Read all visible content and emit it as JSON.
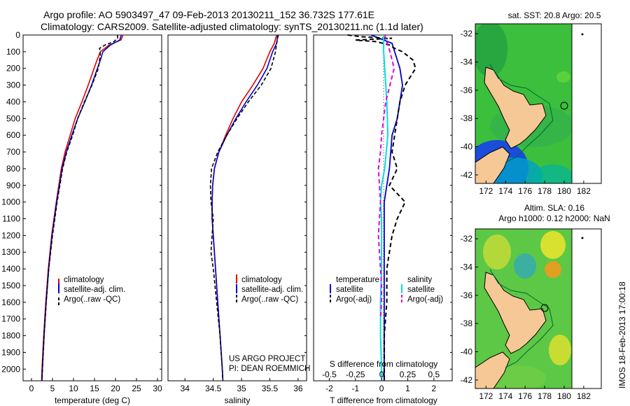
{
  "title_line1": "Argo profile: AO 5903497_47 09-Feb-2013 20130211_152 36.732S 177.61E",
  "title_line2": "Climatology: CARS2009. Satellite-adjusted climatology: synTS_20130211.nc (1.1d later)",
  "colors": {
    "climatology": "#e00000",
    "satellite": "#0000cc",
    "argo": "#000000",
    "salinity_sat": "#00e0e0",
    "salinity_argo": "#e000e0",
    "land": "#f5c896",
    "coast": "#000000",
    "contour": "#006633"
  },
  "depth_ticks": [
    "0",
    "100",
    "200",
    "300",
    "400",
    "500",
    "600",
    "700",
    "800",
    "900",
    "1000",
    "1100",
    "1200",
    "1300",
    "1400",
    "1500",
    "1600",
    "1700",
    "1800",
    "1900",
    "2000"
  ],
  "legend_profile": {
    "climatology": "climatology",
    "satellite": "satellite-adj. clim.",
    "argo": "Argo(..raw -QC)"
  },
  "legend_diff": {
    "temperature": "temperature",
    "salinity": "salinity",
    "satellite": "satellite",
    "argo": "Argo(-adj)"
  },
  "credit": {
    "line1": "US ARGO PROJECT",
    "line2": "PI: DEAN ROEMMICH"
  },
  "diff_top_label": "S difference from climatology",
  "map1": {
    "title": "sat. SST: 20.8  Argo: 20.5",
    "lat_ticks": [
      "-32",
      "-34",
      "-36",
      "-38",
      "-40",
      "-42"
    ],
    "lon_ticks": [
      "172",
      "174",
      "176",
      "178",
      "180",
      "182"
    ]
  },
  "map2": {
    "title1": "Altim. SLA: 0.16",
    "title2": "Argo h1000: 0.12  h2000: NaN",
    "lat_ticks": [
      "-32",
      "-34",
      "-36",
      "-38",
      "-40",
      "-42"
    ],
    "lon_ticks": [
      "172",
      "174",
      "176",
      "178",
      "180",
      "182"
    ]
  },
  "side_label": "IMOS 18-Feb-2013 17:00:18",
  "chart_data": [
    {
      "type": "line",
      "xlabel": "temperature (deg C)",
      "ylabel": "",
      "xlim": [
        -2,
        31
      ],
      "ylim": [
        2070,
        0
      ],
      "x_ticks": [
        "0",
        "5",
        "10",
        "15",
        "20",
        "25",
        "30"
      ],
      "series": [
        {
          "name": "climatology",
          "depth": [
            0,
            30,
            60,
            100,
            150,
            200,
            300,
            400,
            500,
            600,
            700,
            800,
            1000,
            1200,
            1400,
            1600,
            1800,
            2000,
            2070
          ],
          "values": [
            21.8,
            21.3,
            18.5,
            16.4,
            15.6,
            14.9,
            13.5,
            12.0,
            10.4,
            9.2,
            8.0,
            7.1,
            5.9,
            4.8,
            4.0,
            3.4,
            2.9,
            2.5,
            2.4
          ]
        },
        {
          "name": "satellite-adj. clim.",
          "depth": [
            0,
            30,
            60,
            100,
            150,
            200,
            300,
            400,
            500,
            600,
            700,
            800,
            1000,
            1200,
            1400,
            1600,
            1800,
            2000,
            2070
          ],
          "values": [
            21.4,
            21.0,
            18.8,
            17.0,
            16.4,
            15.7,
            14.3,
            12.7,
            11.0,
            9.6,
            8.3,
            7.3,
            6.0,
            4.9,
            4.1,
            3.5,
            3.0,
            2.6,
            2.5
          ]
        },
        {
          "name": "Argo(..raw -QC)",
          "depth": [
            0,
            20,
            40,
            60,
            80,
            120,
            200,
            300,
            400,
            500,
            600,
            700,
            800,
            1000,
            1200,
            1400,
            1600,
            1800,
            2000,
            2070
          ],
          "values": [
            20.5,
            20.5,
            19.6,
            17.5,
            16.2,
            16.4,
            15.9,
            14.4,
            12.6,
            11.0,
            9.8,
            8.4,
            7.4,
            6.1,
            5.0,
            4.1,
            3.5,
            3.0,
            2.6,
            2.5
          ]
        }
      ]
    },
    {
      "type": "line",
      "xlabel": "salinity",
      "ylabel": "",
      "xlim": [
        33.7,
        36.15
      ],
      "ylim": [
        2070,
        0
      ],
      "x_ticks": [
        "34",
        "34.5",
        "35",
        "35.5",
        "36"
      ],
      "series": [
        {
          "name": "climatology",
          "depth": [
            0,
            50,
            100,
            200,
            300,
            400,
            500,
            600,
            700,
            800,
            900,
            1000,
            1100,
            1200,
            1400,
            1600,
            1800,
            2000,
            2070
          ],
          "values": [
            35.62,
            35.58,
            35.5,
            35.38,
            35.2,
            35.0,
            34.85,
            34.72,
            34.6,
            34.52,
            34.49,
            34.48,
            34.48,
            34.5,
            34.54,
            34.58,
            34.62,
            34.66,
            34.67
          ]
        },
        {
          "name": "satellite-adj. clim.",
          "depth": [
            0,
            50,
            100,
            200,
            300,
            400,
            500,
            600,
            700,
            800,
            900,
            1000,
            1100,
            1200,
            1400,
            1600,
            1800,
            2000,
            2070
          ],
          "values": [
            35.64,
            35.62,
            35.55,
            35.45,
            35.28,
            35.08,
            34.9,
            34.74,
            34.6,
            34.52,
            34.49,
            34.48,
            34.48,
            34.5,
            34.54,
            34.58,
            34.62,
            34.66,
            34.67
          ]
        },
        {
          "name": "Argo(..raw -QC)",
          "depth": [
            0,
            50,
            100,
            200,
            300,
            400,
            500,
            600,
            700,
            800,
            900,
            1000,
            1100,
            1200,
            1300,
            1400,
            1600,
            1800,
            2000,
            2070
          ],
          "values": [
            35.65,
            35.62,
            35.6,
            35.52,
            35.35,
            35.12,
            34.92,
            34.74,
            34.58,
            34.47,
            34.45,
            34.46,
            34.5,
            34.48,
            34.46,
            34.5,
            34.56,
            34.62,
            34.66,
            34.67
          ]
        }
      ]
    },
    {
      "type": "line",
      "xlabel": "T difference from climatology",
      "ylabel": "",
      "xlim": [
        -2.6,
        2.7
      ],
      "ylim": [
        2070,
        0
      ],
      "x_ticks": [
        "-2",
        "-1",
        "0",
        "1",
        "2"
      ],
      "x2_ticks": [
        "-0.5",
        "-0.25",
        "0",
        "0.25",
        "0.5"
      ],
      "series": [
        {
          "name": "temperature satellite",
          "depth": [
            0,
            50,
            100,
            200,
            300,
            400,
            500,
            600,
            800,
            1000,
            1200,
            1400,
            1600,
            1800,
            2000,
            2070
          ],
          "values": [
            -0.4,
            0.4,
            0.5,
            0.7,
            0.8,
            0.7,
            0.6,
            0.4,
            0.3,
            0.1,
            0.1,
            0.1,
            0.1,
            0.1,
            0.1,
            0.1
          ]
        },
        {
          "name": "temperature Argo(-adj)",
          "depth": [
            0,
            10,
            20,
            30,
            40,
            60,
            80,
            100,
            150,
            200,
            250,
            300,
            400,
            500,
            600,
            700,
            800,
            900,
            1000,
            1100,
            1200,
            1300,
            1400,
            1600,
            1800,
            2000,
            2070
          ],
          "values": [
            -1.3,
            -0.8,
            0.4,
            -1.0,
            -0.2,
            0.3,
            0.5,
            0.8,
            1.2,
            1.3,
            1.1,
            0.9,
            0.7,
            0.6,
            0.5,
            0.4,
            0.6,
            0.3,
            0.9,
            0.6,
            0.4,
            0.3,
            0.2,
            0.2,
            0.1,
            0.1,
            0.1
          ]
        },
        {
          "name": "salinity satellite",
          "depth": [
            0,
            100,
            200,
            400,
            600,
            800,
            900,
            1000,
            1100,
            1200,
            1400,
            1600,
            1800,
            2000,
            2070
          ],
          "values": [
            0.02,
            0.02,
            0.03,
            0.05,
            0.06,
            0.03,
            0.0,
            -0.01,
            0.0,
            0.0,
            0.0,
            -0.01,
            -0.01,
            0.0,
            0.0
          ]
        },
        {
          "name": "salinity Argo(-adj)",
          "depth": [
            0,
            100,
            200,
            300,
            400,
            500,
            600,
            700,
            800,
            900,
            1000,
            1100,
            1200,
            1300,
            1400,
            1500,
            1600,
            1700
          ],
          "values": [
            0.03,
            0.08,
            0.12,
            0.08,
            0.04,
            0.02,
            0.0,
            -0.01,
            -0.03,
            -0.02,
            -0.01,
            -0.02,
            -0.03,
            -0.02,
            -0.01,
            0.0,
            0.0,
            -0.01
          ]
        }
      ]
    }
  ]
}
